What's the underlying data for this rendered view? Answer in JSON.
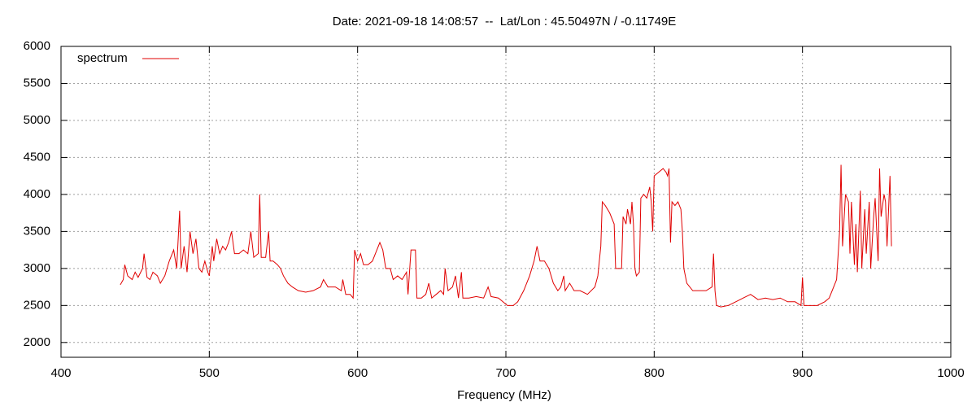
{
  "chart_data": {
    "type": "line",
    "title": "Date: 2021-09-18 14:08:57  --  Lat/Lon : 45.50497N / -0.11749E",
    "x_label": "Frequency (MHz)",
    "xlim": [
      400,
      1000
    ],
    "xticks": [
      400,
      500,
      600,
      700,
      800,
      900,
      1000
    ],
    "ylim": [
      1800,
      6000
    ],
    "yticks": [
      2000,
      2500,
      3000,
      3500,
      4000,
      4500,
      5000,
      5500,
      6000
    ],
    "grid": true,
    "legend": "top-left",
    "series": [
      {
        "name": "spectrum",
        "color": "#e00000",
        "x": [
          440,
          442,
          443,
          445,
          448,
          450,
          452,
          455,
          456,
          458,
          460,
          462,
          465,
          467,
          470,
          473,
          476,
          478,
          480,
          481,
          483,
          485,
          487,
          489,
          491,
          493,
          495,
          497,
          499,
          500,
          502,
          503,
          505,
          507,
          509,
          511,
          513,
          515,
          517,
          520,
          523,
          526,
          528,
          530,
          533,
          534,
          535,
          538,
          540,
          541,
          543,
          546,
          548,
          550,
          553,
          556,
          560,
          565,
          570,
          575,
          577,
          580,
          585,
          589,
          590,
          592,
          595,
          597,
          598,
          600,
          602,
          604,
          607,
          610,
          613,
          615,
          617,
          619,
          622,
          624,
          627,
          630,
          633,
          634,
          636,
          639,
          640,
          643,
          646,
          648,
          650,
          653,
          656,
          658,
          659,
          661,
          664,
          666,
          668,
          670,
          671,
          675,
          680,
          685,
          688,
          690,
          695,
          698,
          701,
          705,
          708,
          712,
          716,
          719,
          721,
          723,
          726,
          729,
          732,
          735,
          737,
          739,
          740,
          743,
          746,
          750,
          755,
          760,
          762,
          764,
          765,
          767,
          770,
          773,
          774,
          776,
          778,
          779,
          781,
          782,
          784,
          785,
          786,
          787,
          788,
          790,
          791,
          793,
          795,
          797,
          798,
          799,
          800,
          803,
          806,
          808,
          809,
          810,
          811,
          812,
          814,
          816,
          818,
          819,
          820,
          822,
          826,
          830,
          835,
          839,
          840,
          841,
          842,
          845,
          850,
          855,
          860,
          865,
          870,
          875,
          880,
          885,
          890,
          895,
          899,
          900,
          901,
          905,
          910,
          915,
          918,
          920,
          923,
          925,
          926,
          927,
          929,
          931,
          932,
          933,
          935,
          936,
          937,
          939,
          940,
          942,
          943,
          945,
          946,
          948,
          949,
          951,
          952,
          953,
          955,
          956,
          957,
          959,
          960
        ],
        "values": [
          2780,
          2850,
          3050,
          2900,
          2850,
          2950,
          2880,
          3000,
          3200,
          2880,
          2850,
          2950,
          2900,
          2800,
          2900,
          3100,
          3250,
          3000,
          3780,
          3000,
          3300,
          2950,
          3500,
          3200,
          3400,
          3000,
          2950,
          3100,
          2950,
          2900,
          3300,
          3100,
          3400,
          3200,
          3300,
          3250,
          3350,
          3500,
          3200,
          3200,
          3250,
          3200,
          3500,
          3150,
          3200,
          4000,
          3150,
          3150,
          3500,
          3100,
          3100,
          3050,
          3000,
          2900,
          2800,
          2750,
          2700,
          2680,
          2700,
          2750,
          2850,
          2750,
          2750,
          2700,
          2850,
          2650,
          2650,
          2600,
          3250,
          3100,
          3200,
          3050,
          3050,
          3100,
          3250,
          3350,
          3250,
          3000,
          3000,
          2850,
          2900,
          2850,
          2950,
          2650,
          3250,
          3250,
          2600,
          2600,
          2650,
          2800,
          2600,
          2650,
          2700,
          2650,
          3000,
          2700,
          2750,
          2900,
          2600,
          2950,
          2600,
          2600,
          2620,
          2600,
          2750,
          2620,
          2600,
          2550,
          2500,
          2500,
          2550,
          2700,
          2900,
          3100,
          3300,
          3100,
          3100,
          3000,
          2800,
          2700,
          2750,
          2900,
          2700,
          2800,
          2700,
          2700,
          2650,
          2750,
          2900,
          3300,
          3900,
          3850,
          3750,
          3600,
          3000,
          3000,
          3000,
          3700,
          3600,
          3800,
          3600,
          3900,
          3600,
          3000,
          2900,
          2950,
          3950,
          4000,
          3950,
          4100,
          3900,
          3500,
          4250,
          4300,
          4350,
          4300,
          4250,
          4350,
          3350,
          3900,
          3850,
          3900,
          3800,
          3500,
          3000,
          2800,
          2700,
          2700,
          2700,
          2750,
          3200,
          2700,
          2500,
          2480,
          2500,
          2550,
          2600,
          2650,
          2580,
          2600,
          2580,
          2600,
          2550,
          2550,
          2500,
          2880,
          2500,
          2500,
          2500,
          2550,
          2600,
          2700,
          2850,
          3500,
          4400,
          3300,
          4000,
          3900,
          3200,
          3900,
          3050,
          3600,
          2950,
          4050,
          3000,
          3800,
          3200,
          3900,
          3000,
          3700,
          3950,
          3100,
          4350,
          3700,
          4000,
          3900,
          3300,
          4250,
          3300
        ]
      }
    ]
  }
}
